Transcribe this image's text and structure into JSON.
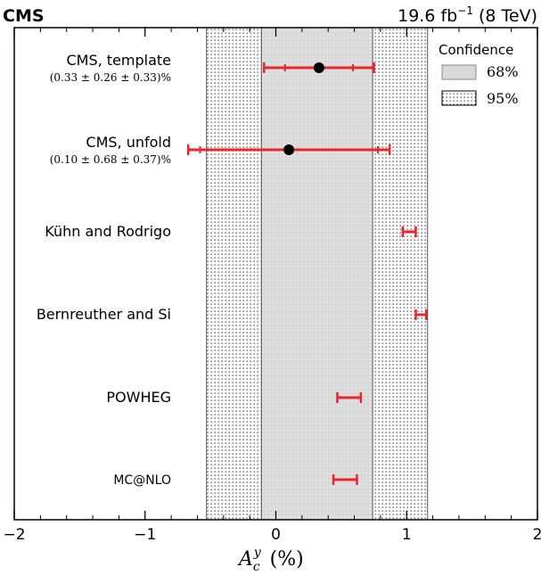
{
  "chart_data": {
    "type": "interval-comparison",
    "header": {
      "experiment": "CMS",
      "luminosity": "19.6 fb",
      "luminosity_exponent": "−1",
      "energy": "(8 TeV)"
    },
    "xlabel": {
      "symbol": "A",
      "subscript": "c",
      "superscript": "y",
      "unit": "(%)"
    },
    "xlim": [
      -2,
      2
    ],
    "xticks": [
      -2,
      -1,
      0,
      1,
      2
    ],
    "xtick_labels": [
      "−2",
      "−1",
      "0",
      "1",
      "2"
    ],
    "bands": [
      {
        "label": "68%",
        "range": [
          -0.11,
          0.74
        ],
        "fill": "#d9d9d9",
        "pattern": "none"
      },
      {
        "label": "95%",
        "range": [
          -0.53,
          1.16
        ],
        "fill": "#ffffff",
        "pattern": "dots"
      }
    ],
    "legend": {
      "title": "Confidence",
      "placement": "top-right",
      "entries": [
        "68%",
        "95%"
      ]
    },
    "measurements": [
      {
        "label": "CMS, template",
        "sublabel": "(0.33 ± 0.26 ± 0.33)%",
        "value": 0.33,
        "stat_err": 0.26,
        "total_err": 0.42,
        "marker": true
      },
      {
        "label": "CMS, unfold",
        "sublabel": "(0.10 ± 0.68 ± 0.37)%",
        "value": 0.1,
        "stat_err": 0.68,
        "total_err": 0.77,
        "marker": true
      },
      {
        "label": "Kühn and Rodrigo",
        "sublabel": "",
        "value": 1.02,
        "stat_err": 0.05,
        "total_err": 0.05,
        "marker": false
      },
      {
        "label": "Bernreuther and Si",
        "sublabel": "",
        "value": 1.11,
        "stat_err": 0.04,
        "total_err": 0.04,
        "marker": false
      },
      {
        "label": "POWHEG",
        "sublabel": "",
        "value": 0.56,
        "stat_err": 0.09,
        "total_err": 0.09,
        "marker": false
      },
      {
        "label": "MC@NLO",
        "sublabel": "",
        "value": 0.53,
        "stat_err": 0.09,
        "total_err": 0.09,
        "marker": false
      }
    ],
    "colors": {
      "error_bar": "#e8262b",
      "marker": "#000000",
      "band68": "#d9d9d9"
    }
  }
}
